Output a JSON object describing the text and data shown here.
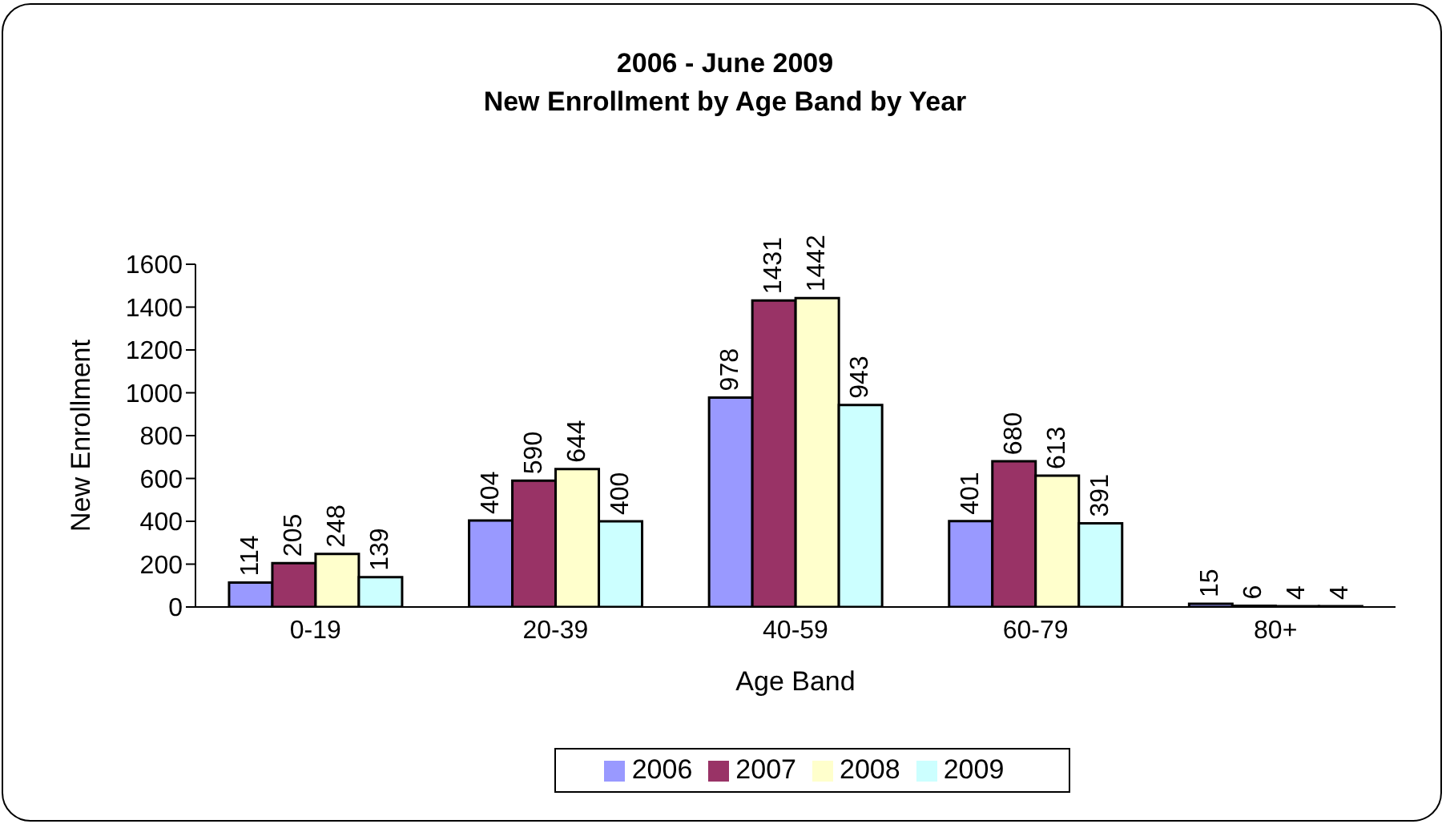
{
  "chart_data": {
    "type": "bar",
    "title": "2006 - June 2009",
    "subtitle": "New Enrollment by Age Band by Year",
    "xlabel": "Age Band",
    "ylabel": "New Enrollment",
    "categories": [
      "0-19",
      "20-39",
      "40-59",
      "60-79",
      "80+"
    ],
    "series": [
      {
        "name": "2006",
        "color": "#9999ff",
        "values": [
          114,
          404,
          978,
          401,
          15
        ]
      },
      {
        "name": "2007",
        "color": "#993366",
        "values": [
          205,
          590,
          1431,
          680,
          6
        ]
      },
      {
        "name": "2008",
        "color": "#ffffcc",
        "values": [
          248,
          644,
          1442,
          613,
          4
        ]
      },
      {
        "name": "2009",
        "color": "#ccffff",
        "values": [
          139,
          400,
          943,
          391,
          4
        ]
      }
    ],
    "ylim": [
      0,
      1600
    ],
    "yticks": [
      0,
      200,
      400,
      600,
      800,
      1000,
      1200,
      1400,
      1600
    ],
    "grid": false,
    "legend": "bottom",
    "data_labels": true
  }
}
